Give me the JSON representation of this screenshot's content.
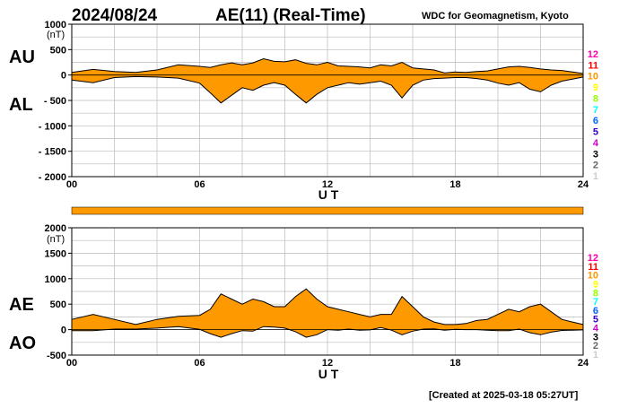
{
  "header": {
    "date": "2024/08/24",
    "title": "AE(11) (Real-Time)",
    "source": "WDC for Geomagnetism, Kyoto",
    "created": "[Created at 2025-03-18 05:27UT]"
  },
  "legend": {
    "station_counts": [
      "12",
      "11",
      "10",
      "9",
      "8",
      "7",
      "6",
      "5",
      "4",
      "3",
      "2",
      "1"
    ],
    "colors": [
      "#ff00aa",
      "#ff0000",
      "#ff9900",
      "#ffff00",
      "#99ff00",
      "#00ffff",
      "#0066ff",
      "#3300cc",
      "#cc00cc",
      "#000000",
      "#666666",
      "#cccccc"
    ]
  },
  "colors": {
    "fill": "#ff9900",
    "line": "#000000",
    "grid": "#bbbbbb",
    "coverage_bar": "#ff9900"
  },
  "chart_data": [
    {
      "type": "area",
      "id": "au-al",
      "series_labels": [
        "AU",
        "AL"
      ],
      "xlabel": "U T",
      "ylabel": "(nT)",
      "xlim": [
        0,
        24
      ],
      "ylim": [
        -2000,
        1000
      ],
      "xticks": [
        "00",
        "06",
        "12",
        "18",
        "24"
      ],
      "yticks": [
        "1000",
        "500",
        "0",
        "- 500",
        "- 1000",
        "- 1500",
        "- 2000"
      ],
      "x": [
        0,
        1,
        2,
        3,
        4,
        5,
        6,
        6.5,
        7,
        7.5,
        8,
        8.5,
        9,
        9.5,
        10,
        10.5,
        11,
        11.5,
        12,
        12.5,
        13,
        13.5,
        14,
        14.5,
        15,
        15.5,
        16,
        16.5,
        17,
        17.5,
        18,
        18.5,
        19,
        19.5,
        20,
        20.5,
        21,
        21.5,
        22,
        22.5,
        23,
        23.5,
        24
      ],
      "series": [
        {
          "name": "AU",
          "values": [
            50,
            110,
            70,
            50,
            100,
            200,
            170,
            150,
            200,
            240,
            200,
            240,
            320,
            270,
            260,
            300,
            230,
            200,
            250,
            180,
            170,
            160,
            140,
            200,
            180,
            250,
            140,
            120,
            100,
            40,
            60,
            50,
            70,
            80,
            120,
            160,
            170,
            150,
            120,
            100,
            90,
            60,
            30
          ]
        },
        {
          "name": "AL",
          "values": [
            -100,
            -150,
            -50,
            -30,
            -40,
            -60,
            -160,
            -350,
            -550,
            -400,
            -250,
            -300,
            -200,
            -150,
            -200,
            -380,
            -550,
            -380,
            -250,
            -200,
            -150,
            -180,
            -150,
            -120,
            -200,
            -450,
            -200,
            -100,
            -70,
            -60,
            -50,
            -50,
            -70,
            -100,
            -160,
            -200,
            -150,
            -280,
            -330,
            -200,
            -120,
            -80,
            -40
          ]
        }
      ],
      "coverage_bar": "full"
    },
    {
      "type": "area",
      "id": "ae-ao",
      "series_labels": [
        "AE",
        "AO"
      ],
      "xlabel": "U T",
      "ylabel": "(nT)",
      "xlim": [
        0,
        24
      ],
      "ylim": [
        -500,
        2000
      ],
      "xticks": [
        "00",
        "06",
        "12",
        "18",
        "24"
      ],
      "yticks": [
        "2000",
        "1500",
        "1000",
        "500",
        "0",
        "-500"
      ],
      "x": [
        0,
        1,
        2,
        3,
        4,
        5,
        6,
        6.5,
        7,
        7.5,
        8,
        8.5,
        9,
        9.5,
        10,
        10.5,
        11,
        11.5,
        12,
        12.5,
        13,
        13.5,
        14,
        14.5,
        15,
        15.5,
        16,
        16.5,
        17,
        17.5,
        18,
        18.5,
        19,
        19.5,
        20,
        20.5,
        21,
        21.5,
        22,
        22.5,
        23,
        23.5,
        24
      ],
      "series": [
        {
          "name": "AE",
          "values": [
            200,
            300,
            200,
            100,
            200,
            260,
            280,
            400,
            700,
            600,
            500,
            600,
            550,
            450,
            450,
            650,
            800,
            600,
            450,
            400,
            350,
            300,
            250,
            300,
            300,
            650,
            450,
            250,
            150,
            100,
            100,
            120,
            180,
            200,
            300,
            400,
            350,
            450,
            500,
            350,
            200,
            150,
            100
          ]
        },
        {
          "name": "AO",
          "values": [
            -20,
            -20,
            10,
            10,
            30,
            60,
            5,
            -80,
            -150,
            -80,
            -20,
            -30,
            60,
            50,
            30,
            -40,
            -150,
            -100,
            0,
            -10,
            10,
            -10,
            -5,
            40,
            -10,
            -100,
            -30,
            10,
            15,
            -10,
            5,
            0,
            0,
            -10,
            -20,
            -20,
            10,
            -60,
            -100,
            -50,
            -15,
            -10,
            -5
          ]
        }
      ]
    }
  ]
}
